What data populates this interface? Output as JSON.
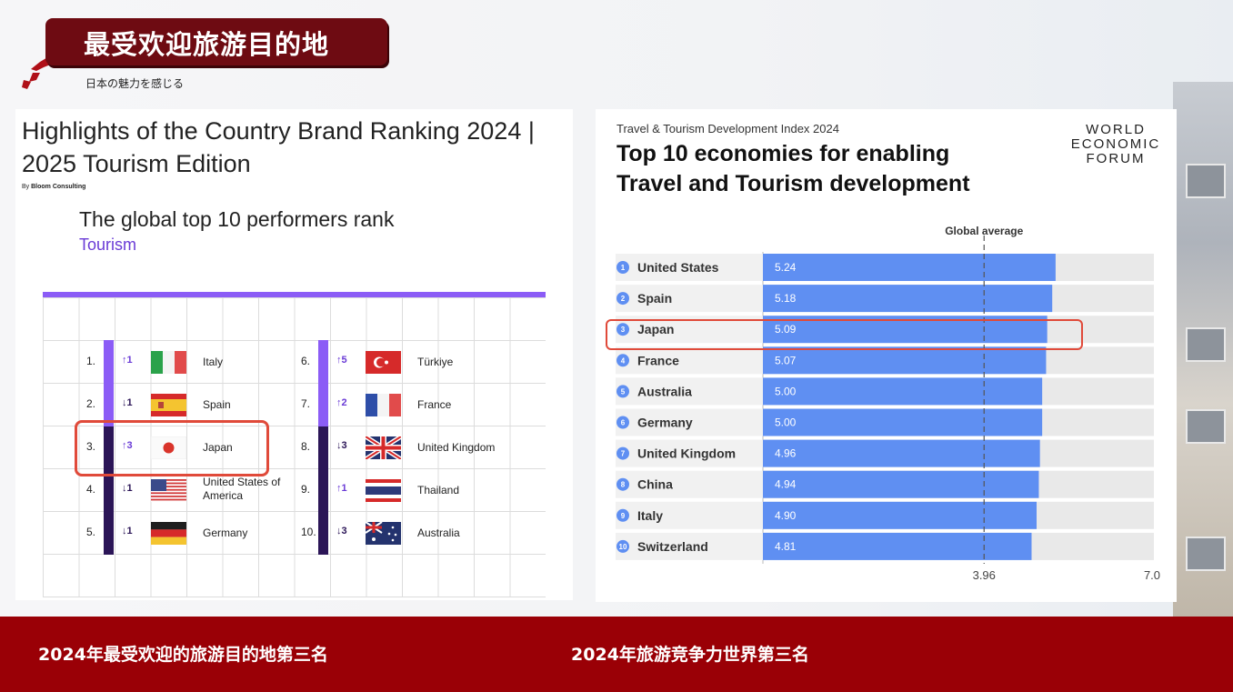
{
  "header": {
    "title": "最受欢迎旅游目的地",
    "subtitle": "日本の魅力を感じる"
  },
  "brand_ranking": {
    "title": "Highlights of the Country Brand Ranking 2024 | 2025 Tourism Edition",
    "by_prefix": "By",
    "by_author": "Bloom Consulting",
    "subtitle": "The global top 10 performers rank",
    "category": "Tourism",
    "rows": [
      {
        "rank": "1.",
        "change": "↑1",
        "dir": "up",
        "country": "Italy",
        "flag": "italy-flag"
      },
      {
        "rank": "2.",
        "change": "↓1",
        "dir": "down",
        "country": "Spain",
        "flag": "spain-flag"
      },
      {
        "rank": "3.",
        "change": "↑3",
        "dir": "up",
        "country": "Japan",
        "flag": "japan-flag"
      },
      {
        "rank": "4.",
        "change": "↓1",
        "dir": "down",
        "country": "United States of America",
        "flag": "usa-flag"
      },
      {
        "rank": "5.",
        "change": "↓1",
        "dir": "down",
        "country": "Germany",
        "flag": "germany-flag"
      },
      {
        "rank": "6.",
        "change": "↑5",
        "dir": "up",
        "country": "Türkiye",
        "flag": "turkiye-flag"
      },
      {
        "rank": "7.",
        "change": "↑2",
        "dir": "up",
        "country": "France",
        "flag": "france-flag"
      },
      {
        "rank": "8.",
        "change": "↓3",
        "dir": "down",
        "country": "United Kingdom",
        "flag": "uk-flag"
      },
      {
        "rank": "9.",
        "change": "↑1",
        "dir": "up",
        "country": "Thailand",
        "flag": "thailand-flag"
      },
      {
        "rank": "10.",
        "change": "↓3",
        "dir": "down",
        "country": "Australia",
        "flag": "australia-flag"
      }
    ]
  },
  "wef": {
    "kicker": "Travel & Tourism Development Index 2024",
    "title": "Top 10 economies for enabling Travel and Tourism development",
    "logo": [
      "WORLD",
      "ECONOMIC",
      "FORUM"
    ]
  },
  "chart_data": {
    "type": "bar",
    "orientation": "horizontal",
    "categories": [
      "United States",
      "Spain",
      "Japan",
      "France",
      "Australia",
      "Germany",
      "United Kingdom",
      "China",
      "Italy",
      "Switzerland"
    ],
    "ranks": [
      "1",
      "2",
      "3",
      "4",
      "5",
      "6",
      "7",
      "8",
      "9",
      "10"
    ],
    "values": [
      5.24,
      5.18,
      5.09,
      5.07,
      5.0,
      5.0,
      4.96,
      4.94,
      4.9,
      4.81
    ],
    "value_labels": [
      "5.24",
      "5.18",
      "5.09",
      "5.07",
      "5.00",
      "5.00",
      "4.96",
      "4.94",
      "4.90",
      "4.81"
    ],
    "reference_line": {
      "label": "Global average",
      "value": 3.96,
      "tick_label": "3.96"
    },
    "xmax_tick_label": "7.0",
    "xlim": [
      0,
      7.0
    ],
    "bar_color": "#5f8ff2",
    "track_color": "#e9e9e9",
    "highlight_category": "Japan"
  },
  "footer": {
    "caption_left": "2024年最受欢迎的旅游目的地第三名",
    "caption_right": "2024年旅游竞争力世界第三名",
    "color": "#9a0006"
  }
}
